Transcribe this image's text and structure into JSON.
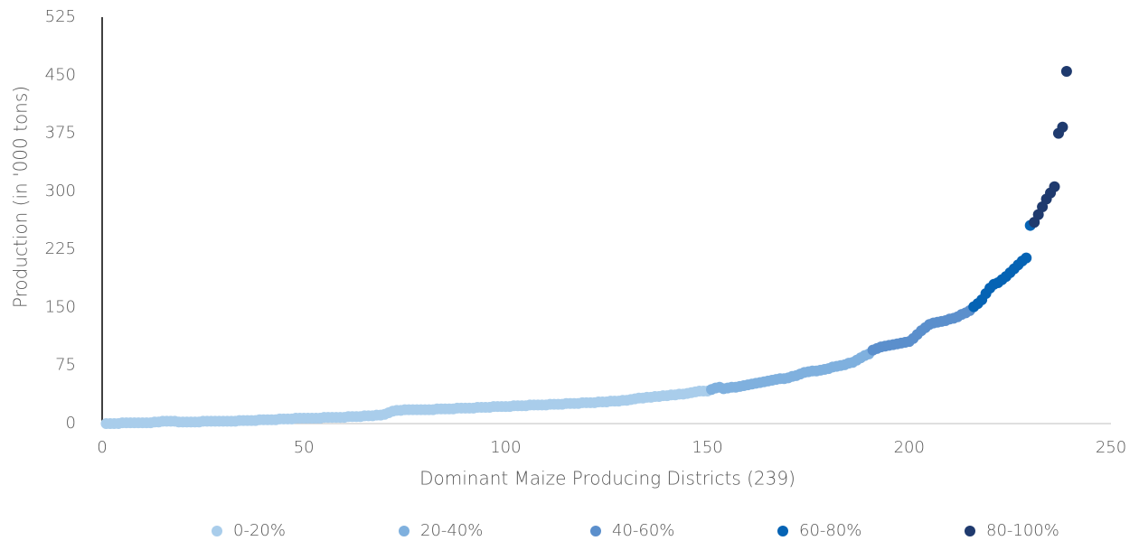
{
  "chart_data": {
    "type": "scatter",
    "x_label": "Dominant Maize Producing Districts (239)",
    "y_label": "Production (in '000 tons)",
    "xlim": [
      0,
      250
    ],
    "xticks": [
      0,
      50,
      100,
      150,
      200,
      250
    ],
    "ylim": [
      0,
      525
    ],
    "yticks": [
      0,
      75,
      150,
      225,
      300,
      375,
      450,
      525
    ],
    "legend": "bottom",
    "series": [
      {
        "name": "0-20%",
        "color": "#a9cdeb",
        "x": [
          1,
          2,
          3,
          4,
          5,
          6,
          7,
          8,
          9,
          10,
          11,
          12,
          13,
          14,
          15,
          16,
          17,
          18,
          19,
          20,
          21,
          22,
          23,
          24,
          25,
          26,
          27,
          28,
          29,
          30,
          31,
          32,
          33,
          34,
          35,
          36,
          37,
          38,
          39,
          40,
          41,
          42,
          43,
          44,
          45,
          46,
          47,
          48,
          49,
          50,
          51,
          52,
          53,
          54,
          55,
          56,
          57,
          58,
          59,
          60,
          61,
          62,
          63,
          64,
          65,
          66,
          67,
          68,
          69,
          70,
          71,
          72,
          73,
          74,
          75,
          76,
          77,
          78,
          79,
          80,
          81,
          82,
          83,
          84,
          85,
          86,
          87,
          88,
          89,
          90,
          91,
          92,
          93,
          94,
          95,
          96,
          97,
          98,
          99,
          100,
          101,
          102,
          103,
          104,
          105,
          106,
          107,
          108,
          109,
          110,
          111,
          112,
          113,
          114,
          115,
          116,
          117,
          118,
          119,
          120,
          121,
          122,
          123,
          124,
          125,
          126,
          127,
          128,
          129,
          130,
          131,
          132,
          133,
          134,
          135,
          136,
          137,
          138,
          139,
          140,
          141,
          142,
          143,
          144,
          145,
          146,
          147,
          148,
          149,
          150
        ],
        "values": [
          0,
          0,
          0,
          0,
          1,
          1,
          1,
          1,
          1,
          1,
          1,
          1,
          2,
          2,
          3,
          3,
          3,
          3,
          2,
          2,
          2,
          2,
          2,
          2,
          3,
          3,
          3,
          3,
          3,
          3,
          3,
          3,
          3,
          4,
          4,
          4,
          4,
          4,
          5,
          5,
          5,
          5,
          5,
          6,
          6,
          6,
          6,
          7,
          7,
          7,
          7,
          7,
          7,
          7,
          8,
          8,
          8,
          8,
          8,
          8,
          9,
          9,
          9,
          9,
          10,
          10,
          10,
          11,
          11,
          12,
          14,
          16,
          17,
          17,
          18,
          18,
          18,
          18,
          18,
          18,
          18,
          18,
          19,
          19,
          19,
          19,
          19,
          20,
          20,
          20,
          20,
          20,
          21,
          21,
          21,
          21,
          22,
          22,
          22,
          22,
          22,
          23,
          23,
          23,
          23,
          24,
          24,
          24,
          24,
          24,
          25,
          25,
          25,
          25,
          26,
          26,
          26,
          26,
          27,
          27,
          27,
          27,
          28,
          28,
          28,
          29,
          29,
          29,
          30,
          30,
          31,
          32,
          33,
          33,
          34,
          34,
          35,
          35,
          36,
          36,
          37,
          37,
          38,
          38,
          39,
          40,
          41,
          42,
          42,
          42
        ]
      },
      {
        "name": "20-40%",
        "color": "#7fb0de",
        "x": [
          151,
          152,
          153,
          154,
          155,
          156,
          157,
          158,
          159,
          160,
          161,
          162,
          163,
          164,
          165,
          166,
          167,
          168,
          169,
          170,
          171,
          172,
          173,
          174,
          175,
          176,
          177,
          178,
          179,
          180,
          181,
          182,
          183,
          184,
          185,
          186,
          187,
          188,
          189,
          190
        ],
        "values": [
          44,
          46,
          47,
          45,
          46,
          47,
          47,
          48,
          49,
          50,
          51,
          52,
          53,
          54,
          55,
          56,
          57,
          58,
          58,
          59,
          61,
          62,
          64,
          66,
          67,
          68,
          68,
          69,
          70,
          71,
          73,
          74,
          75,
          76,
          78,
          79,
          82,
          85,
          88,
          90
        ]
      },
      {
        "name": "40-60%",
        "color": "#5b8fcc",
        "x": [
          191,
          192,
          193,
          194,
          195,
          196,
          197,
          198,
          199,
          200,
          201,
          202,
          203,
          204,
          205,
          206,
          207,
          208,
          209,
          210,
          211,
          212,
          213,
          214,
          215
        ],
        "values": [
          95,
          97,
          99,
          100,
          101,
          102,
          103,
          104,
          105,
          106,
          110,
          115,
          120,
          124,
          128,
          130,
          131,
          132,
          133,
          135,
          136,
          138,
          141,
          143,
          146
        ]
      },
      {
        "name": "60-80%",
        "color": "#0563b4",
        "x": [
          216,
          217,
          218,
          219,
          220,
          221,
          222,
          223,
          224,
          225,
          226,
          227,
          228,
          229,
          230
        ],
        "values": [
          151,
          155,
          160,
          168,
          175,
          180,
          182,
          186,
          190,
          195,
          200,
          205,
          210,
          214,
          256
        ]
      },
      {
        "name": "80-100%",
        "color": "#1f3a6e",
        "x": [
          231,
          232,
          233,
          234,
          235,
          236,
          237,
          238,
          239
        ],
        "values": [
          260,
          270,
          280,
          290,
          298,
          306,
          375,
          383,
          455
        ]
      }
    ]
  }
}
